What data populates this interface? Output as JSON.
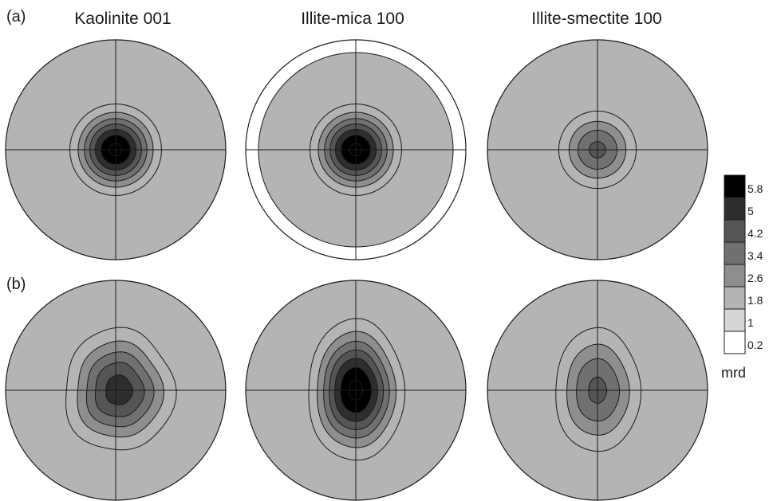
{
  "chart_data": {
    "type": "pole-figure",
    "row_labels": [
      "(a)",
      "(b)"
    ],
    "titles": [
      "Kaolinite 001",
      "Illite-mica 100",
      "Illite-smectite 100"
    ],
    "colorbar": {
      "levels": [
        5.8,
        5,
        4.2,
        3.4,
        2.6,
        1.8,
        1,
        0.2
      ],
      "colors": [
        "#000000",
        "#2e2e2e",
        "#555555",
        "#707070",
        "#8e8e8e",
        "#b4b4b4",
        "#d6d6d6",
        "#ffffff"
      ],
      "unit": "mrd"
    },
    "panels": [
      {
        "row": "(a)",
        "title": "Kaolinite 001",
        "max_mrd": 6.0
      },
      {
        "row": "(a)",
        "title": "Illite-mica 100",
        "max_mrd": 6.0
      },
      {
        "row": "(a)",
        "title": "Illite-smectite 100",
        "max_mrd": 3.6
      },
      {
        "row": "(b)",
        "title": "Kaolinite 001",
        "max_mrd": 4.6
      },
      {
        "row": "(b)",
        "title": "Illite-mica 100",
        "max_mrd": 6.0
      },
      {
        "row": "(b)",
        "title": "Illite-smectite 100",
        "max_mrd": 3.6
      }
    ]
  }
}
